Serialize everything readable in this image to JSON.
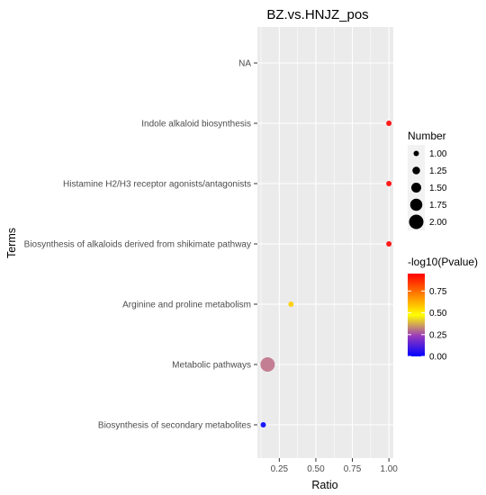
{
  "chart_data": {
    "type": "scatter",
    "title": "BZ.vs.HNJZ_pos",
    "xlabel": "Ratio",
    "ylabel": "Terms",
    "xlim": [
      0.1,
      1.03
    ],
    "x_ticks": [
      0.25,
      0.5,
      0.75,
      1.0
    ],
    "x_tick_labels": [
      "0.25",
      "0.50",
      "0.75",
      "1.00"
    ],
    "categories": [
      "NA",
      "Indole alkaloid biosynthesis",
      "Histamine H2/H3 receptor agonists/antagonists",
      "Biosynthesis of alkaloids derived from shikimate pathway",
      "Arginine and proline metabolism",
      "Metabolic pathways",
      "Biosynthesis of secondary metabolites"
    ],
    "points": [
      {
        "term": "Indole alkaloid biosynthesis",
        "ratio": 1.0,
        "number": 1,
        "neglog10p": 0.95,
        "color": "#ff1a1a"
      },
      {
        "term": "Histamine H2/H3 receptor agonists/antagonists",
        "ratio": 1.0,
        "number": 1,
        "neglog10p": 0.95,
        "color": "#ff1a1a"
      },
      {
        "term": "Biosynthesis of alkaloids derived from shikimate pathway",
        "ratio": 1.0,
        "number": 1,
        "neglog10p": 0.95,
        "color": "#ff1a1a"
      },
      {
        "term": "Arginine and proline metabolism",
        "ratio": 0.33,
        "number": 1,
        "neglog10p": 0.5,
        "color": "#ffd21a"
      },
      {
        "term": "Metabolic pathways",
        "ratio": 0.17,
        "number": 2,
        "neglog10p": 0.3,
        "color": "#c47e93"
      },
      {
        "term": "Biosynthesis of secondary metabolites",
        "ratio": 0.14,
        "number": 1,
        "neglog10p": 0.02,
        "color": "#1a1aff"
      }
    ],
    "size_legend": {
      "title": "Number",
      "labels": [
        "1.00",
        "1.25",
        "1.50",
        "1.75",
        "2.00"
      ],
      "values": [
        1.0,
        1.25,
        1.5,
        1.75,
        2.0
      ]
    },
    "color_legend": {
      "title": "-log10(Pvalue)",
      "labels": [
        "0.00",
        "0.25",
        "0.50",
        "0.75"
      ],
      "values": [
        0.0,
        0.25,
        0.5,
        0.75
      ],
      "range": [
        0.0,
        0.95
      ],
      "gradient": [
        "#0000ff",
        "#9b3bbb",
        "#ffff00",
        "#ff8000",
        "#ff0000"
      ]
    },
    "panel_background": "#ebebeb",
    "grid_color": "#ffffff",
    "grid": true,
    "legend_position": "right"
  }
}
